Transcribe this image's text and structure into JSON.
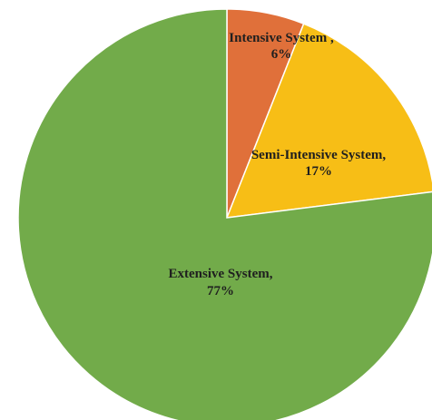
{
  "chart_data": {
    "type": "pie",
    "title": "",
    "slices": [
      {
        "label": "Intensive System ,",
        "value": 6,
        "value_label": "6%",
        "color": "#E0703A"
      },
      {
        "label": "Semi-Intensive System,",
        "value": 17,
        "value_label": "17%",
        "color": "#F7BE16"
      },
      {
        "label": "Extensive System,",
        "value": 77,
        "value_label": "77%",
        "color": "#72AB4A"
      }
    ],
    "start_angle_deg": 0,
    "direction": "clockwise",
    "legend": "none"
  }
}
